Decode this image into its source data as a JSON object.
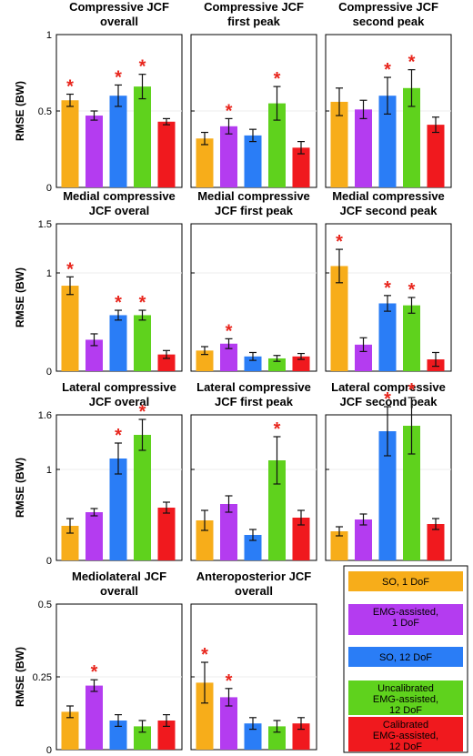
{
  "colors": {
    "SO, 1 DoF": "#f7ad1a",
    "EMG-assisted, 1 DoF": "#b43cf0",
    "SO, 12 DoF": "#2a7df6",
    "Uncalibrated EMG-assisted, 12 DoF": "#5fd21d",
    "Calibrated EMG-assisted, 12 DoF": "#f0191e"
  },
  "legend": [
    {
      "lines": [
        "SO, 1 DoF"
      ],
      "color": "#f7ad1a"
    },
    {
      "lines": [
        "EMG-assisted,",
        "1 DoF"
      ],
      "color": "#b43cf0"
    },
    {
      "lines": [
        "SO, 12 DoF"
      ],
      "color": "#2a7df6"
    },
    {
      "lines": [
        "Uncalibrated",
        "EMG-assisted,",
        "12 DoF"
      ],
      "color": "#5fd21d"
    },
    {
      "lines": [
        "Calibrated",
        "EMG-assisted,",
        "12 DoF"
      ],
      "color": "#f0191e"
    }
  ],
  "chart_data": [
    {
      "type": "bar",
      "title": [
        "Compressive JCF",
        "overall"
      ],
      "ylabel": "RMSE (BW)",
      "ylim": [
        0,
        1
      ],
      "yticks": [
        "0",
        "0.5",
        "1"
      ],
      "ytick_values": [
        0,
        0.5,
        1
      ],
      "series_names": [
        "SO, 1 DoF",
        "EMG-assisted, 1 DoF",
        "SO, 12 DoF",
        "Uncalibrated EMG-assisted, 12 DoF",
        "Calibrated EMG-assisted, 12 DoF"
      ],
      "values": [
        0.57,
        0.47,
        0.6,
        0.66,
        0.43
      ],
      "errors": [
        0.04,
        0.03,
        0.07,
        0.08,
        0.02
      ],
      "significant": [
        true,
        false,
        true,
        true,
        false
      ]
    },
    {
      "type": "bar",
      "title": [
        "Compressive JCF",
        "first peak"
      ],
      "ylabel": "",
      "ylim": [
        0,
        1
      ],
      "yticks": [],
      "ytick_values": [
        0,
        0.5,
        1
      ],
      "values": [
        0.32,
        0.4,
        0.34,
        0.55,
        0.26
      ],
      "errors": [
        0.04,
        0.05,
        0.04,
        0.11,
        0.04
      ],
      "significant": [
        false,
        true,
        false,
        true,
        false
      ]
    },
    {
      "type": "bar",
      "title": [
        "Compressive JCF",
        "second peak"
      ],
      "ylabel": "",
      "ylim": [
        0,
        1
      ],
      "yticks": [],
      "ytick_values": [
        0,
        0.5,
        1
      ],
      "values": [
        0.56,
        0.51,
        0.6,
        0.65,
        0.41
      ],
      "errors": [
        0.09,
        0.06,
        0.12,
        0.12,
        0.05
      ],
      "significant": [
        false,
        false,
        true,
        true,
        false
      ]
    },
    {
      "type": "bar",
      "title": [
        "Medial compressive",
        "JCF overal"
      ],
      "ylabel": "RMSE (BW)",
      "ylim": [
        0,
        1.5
      ],
      "yticks": [
        "0",
        "1",
        "1.5"
      ],
      "ytick_values": [
        0,
        1,
        1.5
      ],
      "values": [
        0.87,
        0.32,
        0.57,
        0.57,
        0.17
      ],
      "errors": [
        0.09,
        0.06,
        0.05,
        0.05,
        0.04
      ],
      "significant": [
        true,
        false,
        true,
        true,
        false
      ]
    },
    {
      "type": "bar",
      "title": [
        "Medial compressive",
        "JCF first peak"
      ],
      "ylabel": "",
      "ylim": [
        0,
        1.5
      ],
      "yticks": [],
      "ytick_values": [
        0,
        1,
        1.5
      ],
      "values": [
        0.21,
        0.28,
        0.15,
        0.13,
        0.15
      ],
      "errors": [
        0.04,
        0.05,
        0.04,
        0.03,
        0.03
      ],
      "significant": [
        false,
        true,
        false,
        false,
        false
      ]
    },
    {
      "type": "bar",
      "title": [
        "Medial compressive",
        "JCF second peak"
      ],
      "ylabel": "",
      "ylim": [
        0,
        1.5
      ],
      "yticks": [],
      "ytick_values": [
        0,
        1,
        1.5
      ],
      "values": [
        1.07,
        0.27,
        0.69,
        0.67,
        0.12
      ],
      "errors": [
        0.17,
        0.07,
        0.08,
        0.08,
        0.07
      ],
      "significant": [
        true,
        false,
        true,
        true,
        false
      ]
    },
    {
      "type": "bar",
      "title": [
        "Lateral compressive",
        "JCF overal"
      ],
      "ylabel": "RMSE (BW)",
      "ylim": [
        0,
        1.6
      ],
      "yticks": [
        "0",
        "1",
        "1.6"
      ],
      "ytick_values": [
        0,
        1,
        1.6
      ],
      "values": [
        0.38,
        0.53,
        1.12,
        1.38,
        0.58
      ],
      "errors": [
        0.08,
        0.04,
        0.17,
        0.17,
        0.06
      ],
      "significant": [
        false,
        false,
        true,
        true,
        false
      ]
    },
    {
      "type": "bar",
      "title": [
        "Lateral compressive",
        "JCF first peak"
      ],
      "ylabel": "",
      "ylim": [
        0,
        1.6
      ],
      "yticks": [],
      "ytick_values": [
        0,
        1,
        1.6
      ],
      "values": [
        0.44,
        0.62,
        0.28,
        1.1,
        0.47
      ],
      "errors": [
        0.11,
        0.09,
        0.06,
        0.26,
        0.08
      ],
      "significant": [
        false,
        false,
        false,
        true,
        false
      ]
    },
    {
      "type": "bar",
      "title": [
        "Lateral compressive",
        "JCF second peak"
      ],
      "ylabel": "",
      "ylim": [
        0,
        1.6
      ],
      "yticks": [],
      "ytick_values": [
        0,
        1,
        1.6
      ],
      "values": [
        0.32,
        0.45,
        1.42,
        1.48,
        0.4
      ],
      "errors": [
        0.05,
        0.06,
        0.27,
        0.31,
        0.06
      ],
      "significant": [
        false,
        false,
        true,
        true,
        false
      ]
    },
    {
      "type": "bar",
      "title": [
        "Mediolateral JCF",
        "overall"
      ],
      "ylabel": "RMSE (BW)",
      "ylim": [
        0,
        0.5
      ],
      "yticks": [
        "0",
        "0.25",
        "0.5"
      ],
      "ytick_values": [
        0,
        0.25,
        0.5
      ],
      "values": [
        0.13,
        0.22,
        0.1,
        0.08,
        0.1
      ],
      "errors": [
        0.02,
        0.02,
        0.02,
        0.02,
        0.02
      ],
      "significant": [
        false,
        true,
        false,
        false,
        false
      ]
    },
    {
      "type": "bar",
      "title": [
        "Anteroposterior JCF",
        "overall"
      ],
      "ylabel": "",
      "ylim": [
        0,
        0.5
      ],
      "yticks": [],
      "ytick_values": [
        0,
        0.25,
        0.5
      ],
      "values": [
        0.23,
        0.18,
        0.09,
        0.08,
        0.09
      ],
      "errors": [
        0.07,
        0.03,
        0.02,
        0.02,
        0.02
      ],
      "significant": [
        true,
        true,
        false,
        false,
        false
      ]
    }
  ]
}
